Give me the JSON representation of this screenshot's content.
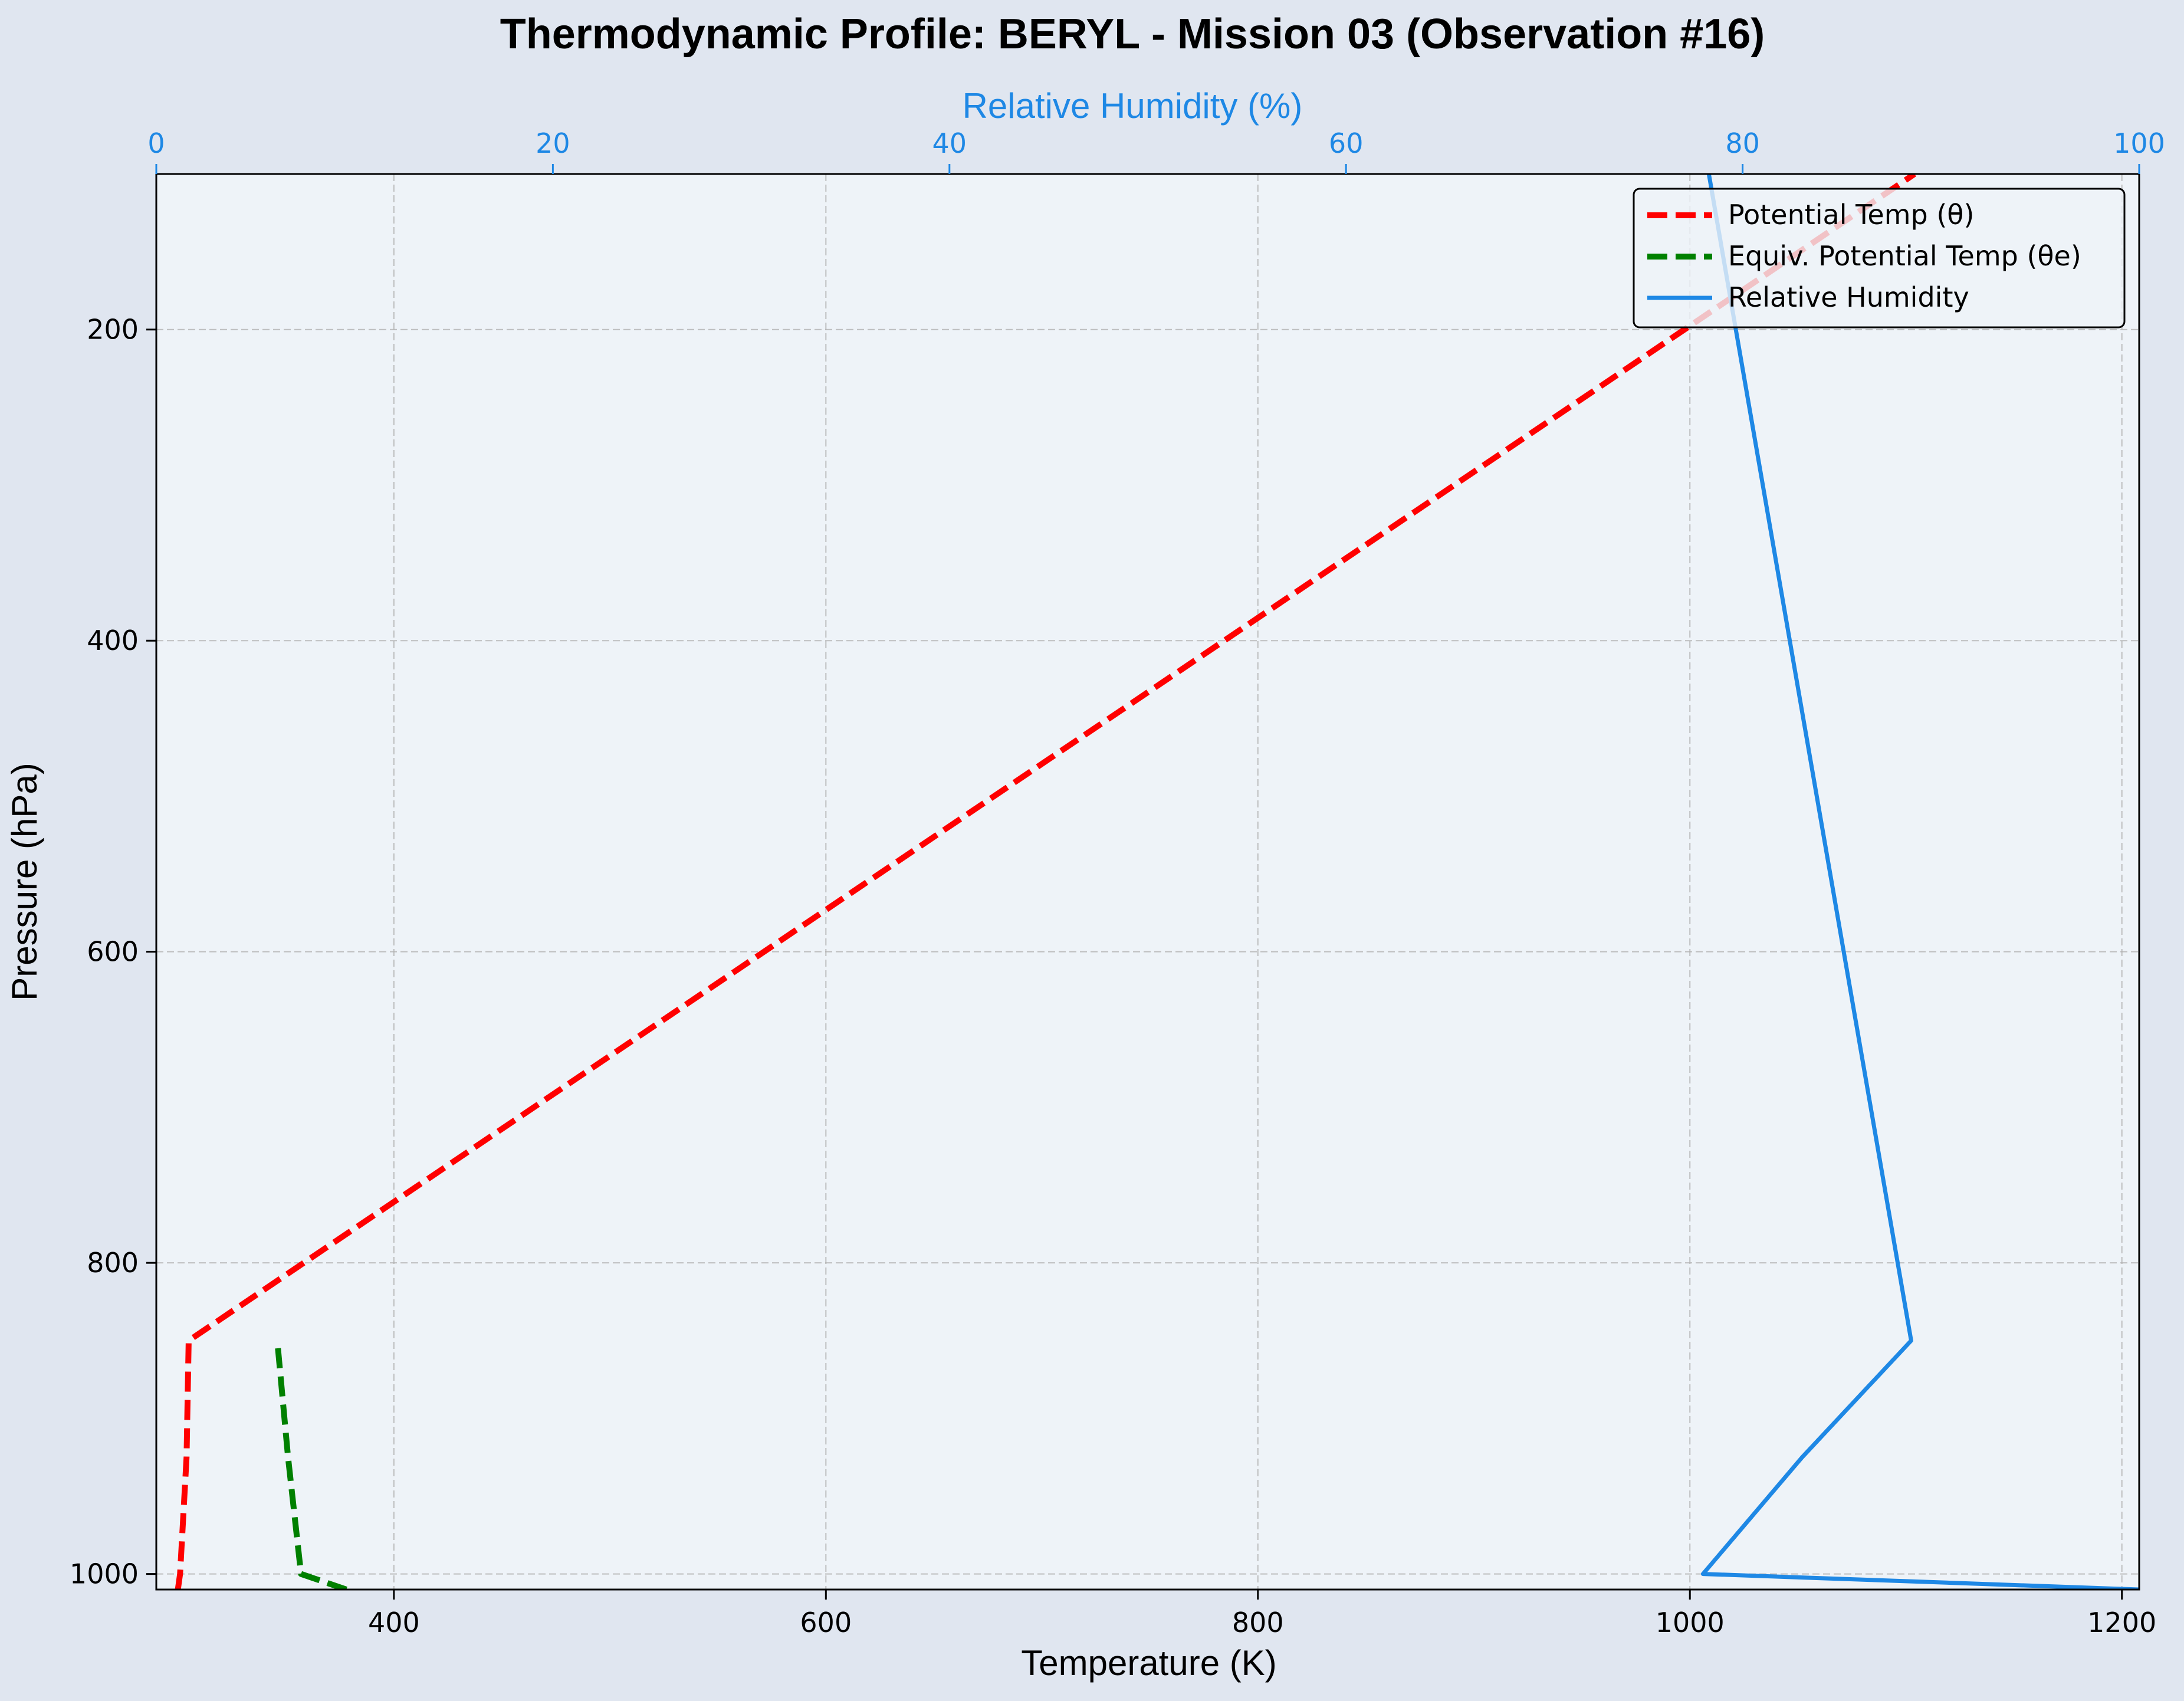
{
  "colors": {
    "background": "#e0e6f0",
    "plot_background": "#eef3f8",
    "grid": "#b0b0b0",
    "theta": "#ff0000",
    "theta_e": "#008000",
    "rh": "#1e88e5",
    "text": "#000000"
  },
  "chart_data": {
    "type": "line",
    "title": "Thermodynamic Profile:  BERYL - Mission 03 (Observation #16)",
    "xlabel": "Temperature (K)",
    "ylabel": "Pressure (hPa)",
    "x2label": "Relative Humidity (%)",
    "xlim": [
      290,
      1208
    ],
    "ylim": [
      1010,
      100
    ],
    "y_inverted": true,
    "x2lim": [
      0,
      100
    ],
    "xticks": [
      400,
      600,
      800,
      1000,
      1200
    ],
    "yticks": [
      200,
      400,
      600,
      800,
      1000
    ],
    "x2ticks": [
      0,
      20,
      40,
      60,
      80,
      100
    ],
    "grid": true,
    "legend_position": "top-right",
    "series": [
      {
        "name": "Potential Temp (θ)",
        "axis": "temperature",
        "style": "dashed",
        "color": "#ff0000",
        "points": [
          {
            "x": 300,
            "y": 1010
          },
          {
            "x": 301,
            "y": 1000
          },
          {
            "x": 304,
            "y": 925
          },
          {
            "x": 305,
            "y": 850
          },
          {
            "x": 1104,
            "y": 100
          }
        ]
      },
      {
        "name": "Equiv. Potential Temp (θe)",
        "axis": "temperature",
        "style": "dashed",
        "color": "#008000",
        "points": [
          {
            "x": 378,
            "y": 1010
          },
          {
            "x": 357,
            "y": 1000
          },
          {
            "x": 351,
            "y": 925
          },
          {
            "x": 346,
            "y": 850
          }
        ]
      },
      {
        "name": "Relative Humidity",
        "axis": "humidity",
        "style": "solid",
        "color": "#1e88e5",
        "points": [
          {
            "x": 100,
            "y": 1010
          },
          {
            "x": 78,
            "y": 1000
          },
          {
            "x": 83,
            "y": 925
          },
          {
            "x": 88.5,
            "y": 850
          },
          {
            "x": 78.3,
            "y": 100
          }
        ]
      }
    ]
  }
}
